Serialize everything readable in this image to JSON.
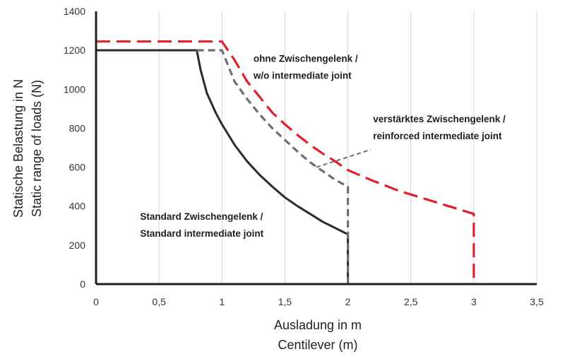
{
  "chart_data": {
    "type": "line",
    "title": "",
    "xlabel_lines": [
      "Ausladung in m",
      "Centilever (m)"
    ],
    "ylabel_lines": [
      "Statische Belastung in N",
      "Static range of loads (N)"
    ],
    "xlim": [
      0,
      3.5
    ],
    "ylim": [
      0,
      1400
    ],
    "x_ticks": [
      {
        "value": 0,
        "label": "0"
      },
      {
        "value": 0.5,
        "label": "0,5"
      },
      {
        "value": 1,
        "label": "1"
      },
      {
        "value": 1.5,
        "label": "1,5"
      },
      {
        "value": 2,
        "label": "2"
      },
      {
        "value": 2.5,
        "label": "2,5"
      },
      {
        "value": 3,
        "label": "3"
      },
      {
        "value": 3.5,
        "label": "3,5"
      }
    ],
    "y_ticks": [
      {
        "value": 0,
        "label": "0"
      },
      {
        "value": 200,
        "label": "200"
      },
      {
        "value": 400,
        "label": "400"
      },
      {
        "value": 600,
        "label": "600"
      },
      {
        "value": 800,
        "label": "800"
      },
      {
        "value": 1000,
        "label": "1000"
      },
      {
        "value": 1200,
        "label": "1200"
      },
      {
        "value": 1400,
        "label": "1400"
      }
    ],
    "grid": "vertical",
    "series": [
      {
        "color": "#2b2b2b",
        "dash": "solid",
        "points": [
          [
            0,
            1200
          ],
          [
            0.8,
            1200
          ],
          [
            0.83,
            1100
          ],
          [
            0.88,
            980
          ],
          [
            0.95,
            880
          ],
          [
            1.0,
            820
          ],
          [
            1.1,
            715
          ],
          [
            1.2,
            630
          ],
          [
            1.3,
            560
          ],
          [
            1.4,
            500
          ],
          [
            1.5,
            445
          ],
          [
            1.6,
            400
          ],
          [
            1.7,
            360
          ],
          [
            1.8,
            320
          ],
          [
            1.9,
            288
          ],
          [
            2.0,
            255
          ],
          [
            2.0,
            0
          ]
        ]
      },
      {
        "color": "#6e6e78",
        "dash": "dashed",
        "points": [
          [
            0.8,
            1200
          ],
          [
            1.0,
            1200
          ],
          [
            1.05,
            1120
          ],
          [
            1.1,
            1040
          ],
          [
            1.2,
            950
          ],
          [
            1.3,
            870
          ],
          [
            1.4,
            800
          ],
          [
            1.5,
            740
          ],
          [
            1.6,
            680
          ],
          [
            1.7,
            625
          ],
          [
            1.8,
            580
          ],
          [
            1.9,
            535
          ],
          [
            2.0,
            500
          ],
          [
            2.0,
            0
          ]
        ]
      },
      {
        "color": "#e0202c",
        "dash": "dashed",
        "points": [
          [
            0,
            1245
          ],
          [
            1.0,
            1245
          ],
          [
            1.1,
            1150
          ],
          [
            1.2,
            1040
          ],
          [
            1.3,
            960
          ],
          [
            1.4,
            880
          ],
          [
            1.5,
            820
          ],
          [
            1.6,
            765
          ],
          [
            1.7,
            715
          ],
          [
            1.8,
            670
          ],
          [
            1.9,
            630
          ],
          [
            2.0,
            585
          ],
          [
            2.2,
            530
          ],
          [
            2.4,
            480
          ],
          [
            2.6,
            440
          ],
          [
            2.8,
            400
          ],
          [
            3.0,
            360
          ],
          [
            3.0,
            0
          ]
        ]
      }
    ],
    "annotations": [
      {
        "lines": [
          "ohne Zwischengelenk /",
          "w/o intermediate joint"
        ],
        "x": 1.25,
        "y": 1140
      },
      {
        "lines": [
          "verstärktes Zwischengelenk /",
          "reinforced intermediate joint"
        ],
        "x": 2.2,
        "y": 830
      },
      {
        "lines": [
          "Standard Zwischengelenk /",
          "Standard intermediate joint"
        ],
        "x": 0.35,
        "y": 330
      }
    ],
    "leader_line": {
      "from": [
        1.75,
        600
      ],
      "to": [
        2.18,
        690
      ],
      "color": "#6e6e78"
    }
  }
}
